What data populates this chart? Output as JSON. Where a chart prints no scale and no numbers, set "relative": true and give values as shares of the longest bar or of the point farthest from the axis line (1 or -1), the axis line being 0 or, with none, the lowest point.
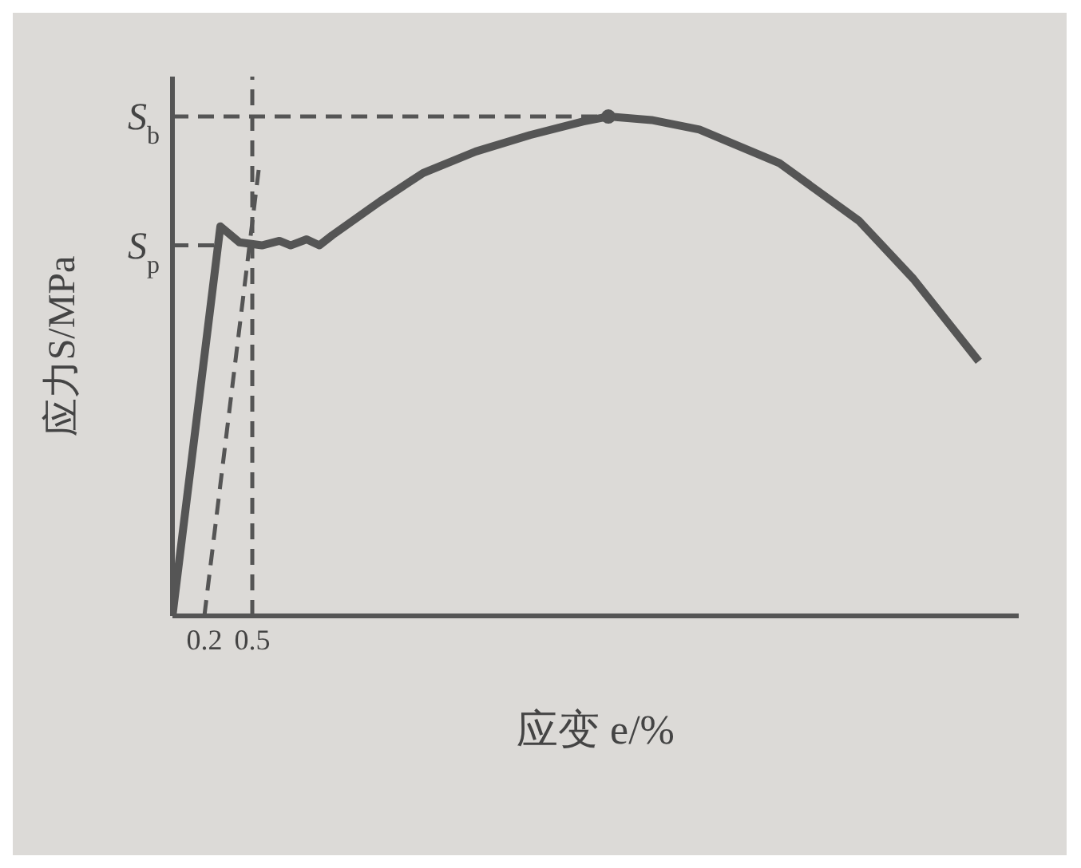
{
  "chart_data": {
    "type": "line",
    "relative": true,
    "xlabel": "应变 e/%",
    "ylabel": "应力S/MPa",
    "xlim": [
      0,
      5.3
    ],
    "xticks": [
      0.2,
      0.5
    ],
    "series": [
      {
        "color": "#555555",
        "line_style": "solid",
        "x": [
          0,
          0.3,
          0.42,
          0.56,
          0.67,
          0.74,
          0.84,
          0.92,
          1.0,
          1.3,
          1.57,
          1.9,
          2.24,
          2.57,
          2.73,
          3.0,
          3.3,
          3.8,
          4.3,
          4.64,
          5.05
        ],
        "values": [
          0,
          0.78,
          0.748,
          0.742,
          0.751,
          0.742,
          0.754,
          0.742,
          0.762,
          0.83,
          0.887,
          0.93,
          0.963,
          0.99,
          1,
          0.993,
          0.974,
          0.907,
          0.791,
          0.675,
          0.51
        ]
      },
      {
        "color": "#555555",
        "line_style": "dashed",
        "x": [
          0.2,
          0.54
        ],
        "values": [
          0,
          0.893
        ]
      },
      {
        "type": "scatter",
        "color": "#555555",
        "marker": "circle",
        "x": [
          2.73
        ],
        "values": [
          1
        ]
      }
    ],
    "ref_lines": [
      {
        "axis": "y",
        "value": 1,
        "label": "S$_{b}$",
        "line_style": "dashed",
        "color": "#555555"
      },
      {
        "axis": "y",
        "value": 0.742,
        "label": "S$_{p}$",
        "line_style": "dashed",
        "color": "#555555"
      },
      {
        "axis": "x",
        "value": 0.5,
        "line_style": "dashed",
        "color": "#555555"
      }
    ]
  }
}
